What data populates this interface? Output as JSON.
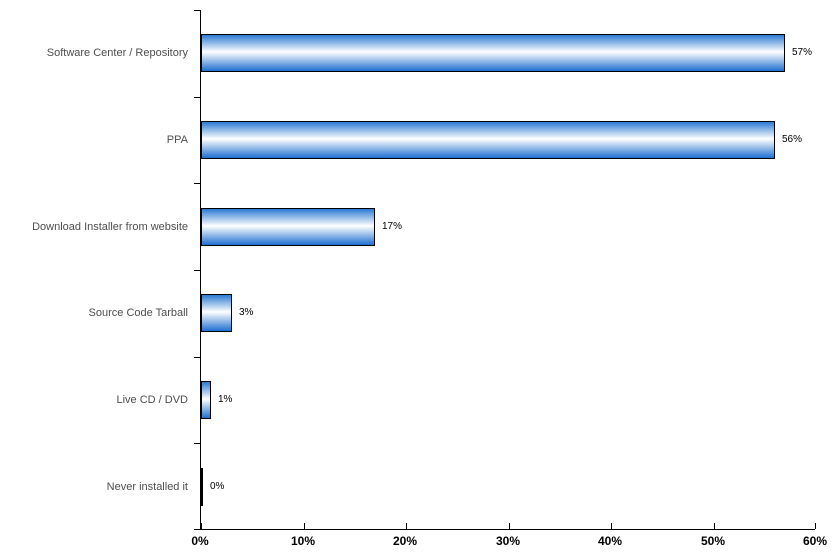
{
  "chart_data": {
    "type": "bar",
    "orientation": "horizontal",
    "title": "",
    "xlabel": "",
    "ylabel": "",
    "categories": [
      "Software Center / Repository",
      "PPA",
      "Download Installer from website",
      "Source Code Tarball",
      "Live CD / DVD",
      "Never installed it"
    ],
    "values": [
      57,
      56,
      17,
      3,
      1,
      0
    ],
    "value_labels": [
      "57%",
      "56%",
      "17%",
      "3%",
      "1%",
      "0%"
    ],
    "xlim": [
      0,
      60
    ],
    "x_tick_labels": [
      "0%",
      "10%",
      "20%",
      "30%",
      "40%",
      "50%",
      "60%"
    ],
    "grid": false,
    "legend": false,
    "colors": {
      "bar_gradient_top": "#2b7bd4",
      "bar_gradient_middle": "#ffffff",
      "bar_gradient_bottom": "#1e6fd0",
      "bar_border": "#000000",
      "axis": "#000000",
      "category_label": "#4d4d4d",
      "value_label": "#000000",
      "tick_label": "#000000",
      "background": "#ffffff"
    }
  }
}
